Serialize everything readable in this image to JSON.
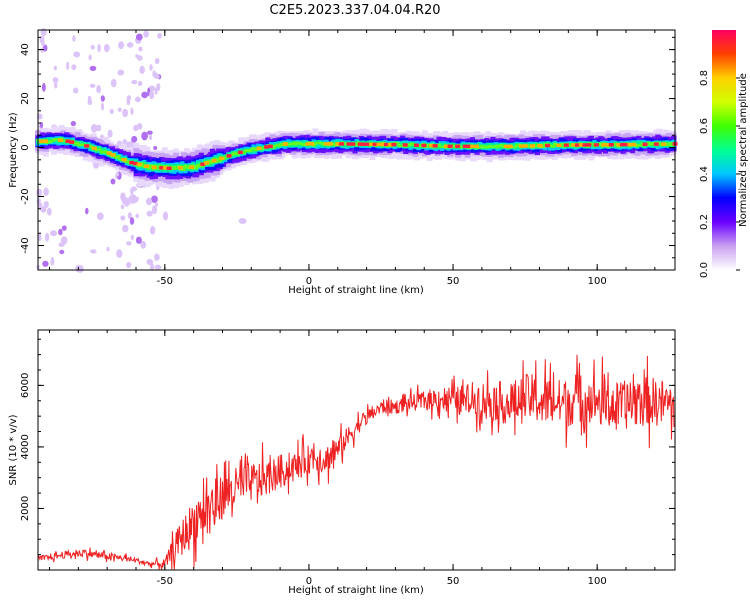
{
  "title": "C2E5.2023.337.04.04.R20",
  "chart_data": [
    {
      "type": "heatmap",
      "name": "spectrogram",
      "xlabel": "Height of straight line (km)",
      "ylabel": "Frequency (Hz)",
      "xlim": [
        -94,
        127
      ],
      "ylim": [
        -50,
        48
      ],
      "xticks": [
        -50,
        0,
        50,
        100
      ],
      "yticks": [
        -40,
        -20,
        0,
        20,
        40
      ],
      "colorbar": {
        "label": "Normalized spectral amplitude",
        "range": [
          0,
          1
        ],
        "ticks": [
          0.0,
          0.2,
          0.4,
          0.6,
          0.8
        ],
        "tick_labels": [
          "0.0",
          "0.2",
          "0.4",
          "0.6",
          "0.8"
        ],
        "colors": [
          "#ffffff",
          "#c9a0f0",
          "#6a00ff",
          "#0000ff",
          "#00c8ff",
          "#00ff90",
          "#40ff00",
          "#d0ff00",
          "#ffd000",
          "#ff4000",
          "#ff0060"
        ]
      },
      "ridge": [
        {
          "x": -94,
          "y": 2.5
        },
        {
          "x": -85,
          "y": 3
        },
        {
          "x": -78,
          "y": 1
        },
        {
          "x": -70,
          "y": -2
        },
        {
          "x": -62,
          "y": -6
        },
        {
          "x": -55,
          "y": -8
        },
        {
          "x": -48,
          "y": -8.5
        },
        {
          "x": -40,
          "y": -8
        },
        {
          "x": -32,
          "y": -5
        },
        {
          "x": -24,
          "y": -2
        },
        {
          "x": -16,
          "y": 0
        },
        {
          "x": -8,
          "y": 1.5
        },
        {
          "x": 0,
          "y": 1.5
        },
        {
          "x": 10,
          "y": 1.5
        },
        {
          "x": 30,
          "y": 1.2
        },
        {
          "x": 50,
          "y": 0.5
        },
        {
          "x": 70,
          "y": 0.5
        },
        {
          "x": 90,
          "y": 1
        },
        {
          "x": 110,
          "y": 1.2
        },
        {
          "x": 127,
          "y": 1.5
        }
      ]
    },
    {
      "type": "line",
      "name": "snr",
      "xlabel": "Height of straight line (km)",
      "ylabel": "SNR (10 * v/v)",
      "xlim": [
        -94,
        127
      ],
      "ylim": [
        0,
        7800
      ],
      "xticks": [
        -50,
        0,
        50,
        100
      ],
      "yticks": [
        2000,
        4000,
        6000
      ],
      "color": "#ee2222",
      "x": [
        -94,
        -85,
        -78,
        -70,
        -62,
        -55,
        -50,
        -46,
        -42,
        -38,
        -34,
        -30,
        -26,
        -22,
        -18,
        -14,
        -10,
        -6,
        -2,
        2,
        6,
        10,
        14,
        18,
        22,
        26,
        30,
        34,
        40,
        46,
        52,
        58,
        64,
        70,
        76,
        82,
        88,
        94,
        100,
        106,
        112,
        118,
        124,
        127
      ],
      "y": [
        350,
        500,
        550,
        450,
        350,
        200,
        200,
        800,
        1300,
        1800,
        2100,
        2400,
        2600,
        2800,
        2900,
        3000,
        3200,
        3300,
        3500,
        3700,
        3600,
        3900,
        4400,
        4800,
        5100,
        5300,
        5300,
        5400,
        5500,
        5600,
        5500,
        5600,
        5500,
        5400,
        5600,
        5500,
        5400,
        5600,
        5500,
        5300,
        5400,
        5500,
        5400,
        5400
      ],
      "noise": [
        120,
        150,
        150,
        150,
        120,
        80,
        200,
        600,
        900,
        1000,
        1000,
        900,
        900,
        800,
        800,
        700,
        700,
        600,
        600,
        600,
        600,
        500,
        400,
        350,
        300,
        300,
        300,
        300,
        400,
        500,
        600,
        700,
        800,
        900,
        1000,
        1000,
        1000,
        1000,
        1000,
        1000,
        1000,
        1000,
        1000,
        1000
      ]
    }
  ]
}
